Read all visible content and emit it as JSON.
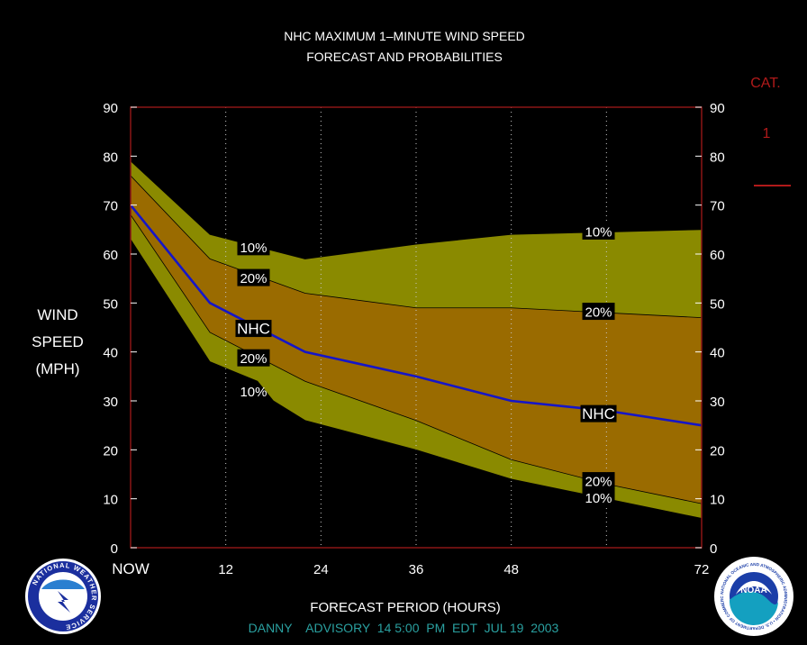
{
  "chart_data": {
    "type": "area",
    "title_lines": [
      "NHC MAXIMUM 1–MINUTE WIND SPEED",
      "FORECAST AND PROBABILITIES"
    ],
    "ylabel_lines": [
      "WIND",
      "SPEED",
      "(MPH)"
    ],
    "xlabel": "FORECAST PERIOD (HOURS)",
    "advisory": "DANNY    ADVISORY  14 5:00  PM  EDT  JUL 19  2003",
    "x_ticks": [
      {
        "label": "NOW",
        "x": 0
      },
      {
        "label": "12",
        "x": 12
      },
      {
        "label": "24",
        "x": 24
      },
      {
        "label": "36",
        "x": 36
      },
      {
        "label": "48",
        "x": 48
      },
      {
        "label": "72",
        "x": 72
      }
    ],
    "gridlines_x": [
      12,
      24,
      36,
      48,
      60
    ],
    "y_ticks": [
      "0",
      "10",
      "20",
      "30",
      "40",
      "50",
      "60",
      "70",
      "80",
      "90"
    ],
    "xlim": [
      0,
      72
    ],
    "ylim": [
      0,
      90
    ],
    "series": {
      "upper_10": {
        "x": [
          0,
          10,
          22,
          36,
          48,
          60,
          72
        ],
        "y": [
          79,
          64,
          59,
          62,
          64,
          64.5,
          65
        ]
      },
      "upper_20": {
        "x": [
          0,
          10,
          22,
          36,
          48,
          60,
          72
        ],
        "y": [
          76,
          59,
          52,
          49,
          49,
          48,
          47
        ]
      },
      "nhc": {
        "x": [
          0,
          10,
          22,
          36,
          48,
          60,
          72
        ],
        "y": [
          70,
          50,
          40,
          35,
          30,
          28,
          25
        ]
      },
      "lower_20": {
        "x": [
          0,
          10,
          22,
          36,
          48,
          60,
          72
        ],
        "y": [
          68,
          44,
          34,
          26,
          18,
          13,
          9
        ]
      },
      "lower_10": {
        "x": [
          0,
          10,
          16,
          18,
          22,
          36,
          48,
          60,
          72
        ],
        "y": [
          63,
          38,
          34,
          30,
          26,
          20,
          14,
          10,
          6
        ]
      }
    },
    "band_labels": [
      {
        "text": "10%",
        "x": 15.5,
        "y": 61.5,
        "box": true
      },
      {
        "text": "20%",
        "x": 15.5,
        "y": 55.2,
        "box": true
      },
      {
        "text": "NHC",
        "x": 15.5,
        "y": 44.8,
        "box": true
      },
      {
        "text": "20%",
        "x": 15.5,
        "y": 38.8,
        "box": true
      },
      {
        "text": "10%",
        "x": 15.5,
        "y": 32.0,
        "box": false
      },
      {
        "text": "10%",
        "x": 59,
        "y": 64.7,
        "box": true
      },
      {
        "text": "20%",
        "x": 59,
        "y": 48.3,
        "box": true
      },
      {
        "text": "NHC",
        "x": 59,
        "y": 27.4,
        "box": true
      },
      {
        "text": "20%",
        "x": 59,
        "y": 13.7,
        "box": true
      },
      {
        "text": "10%",
        "x": 59,
        "y": 10.3,
        "box": true
      }
    ],
    "category_legend": {
      "heading": "CAT.",
      "value": "1"
    },
    "colors": {
      "outer_band": "#8a8a00",
      "inner_band": "#9a6b00",
      "nhc_line": "#1515c8",
      "plot_border": "#8b1515",
      "category": "#b11a1a",
      "advisory": "#2aa0a0",
      "grid": "#c8c8c8"
    }
  },
  "logos": {
    "nws_ring_text": "NATIONAL WEATHER SERVICE",
    "noaa_center": "NOAA",
    "noaa_ring_text": "NATIONAL OCEANIC AND ATMOSPHERIC ADMINISTRATION • U.S. DEPARTMENT OF COMMERCE"
  }
}
